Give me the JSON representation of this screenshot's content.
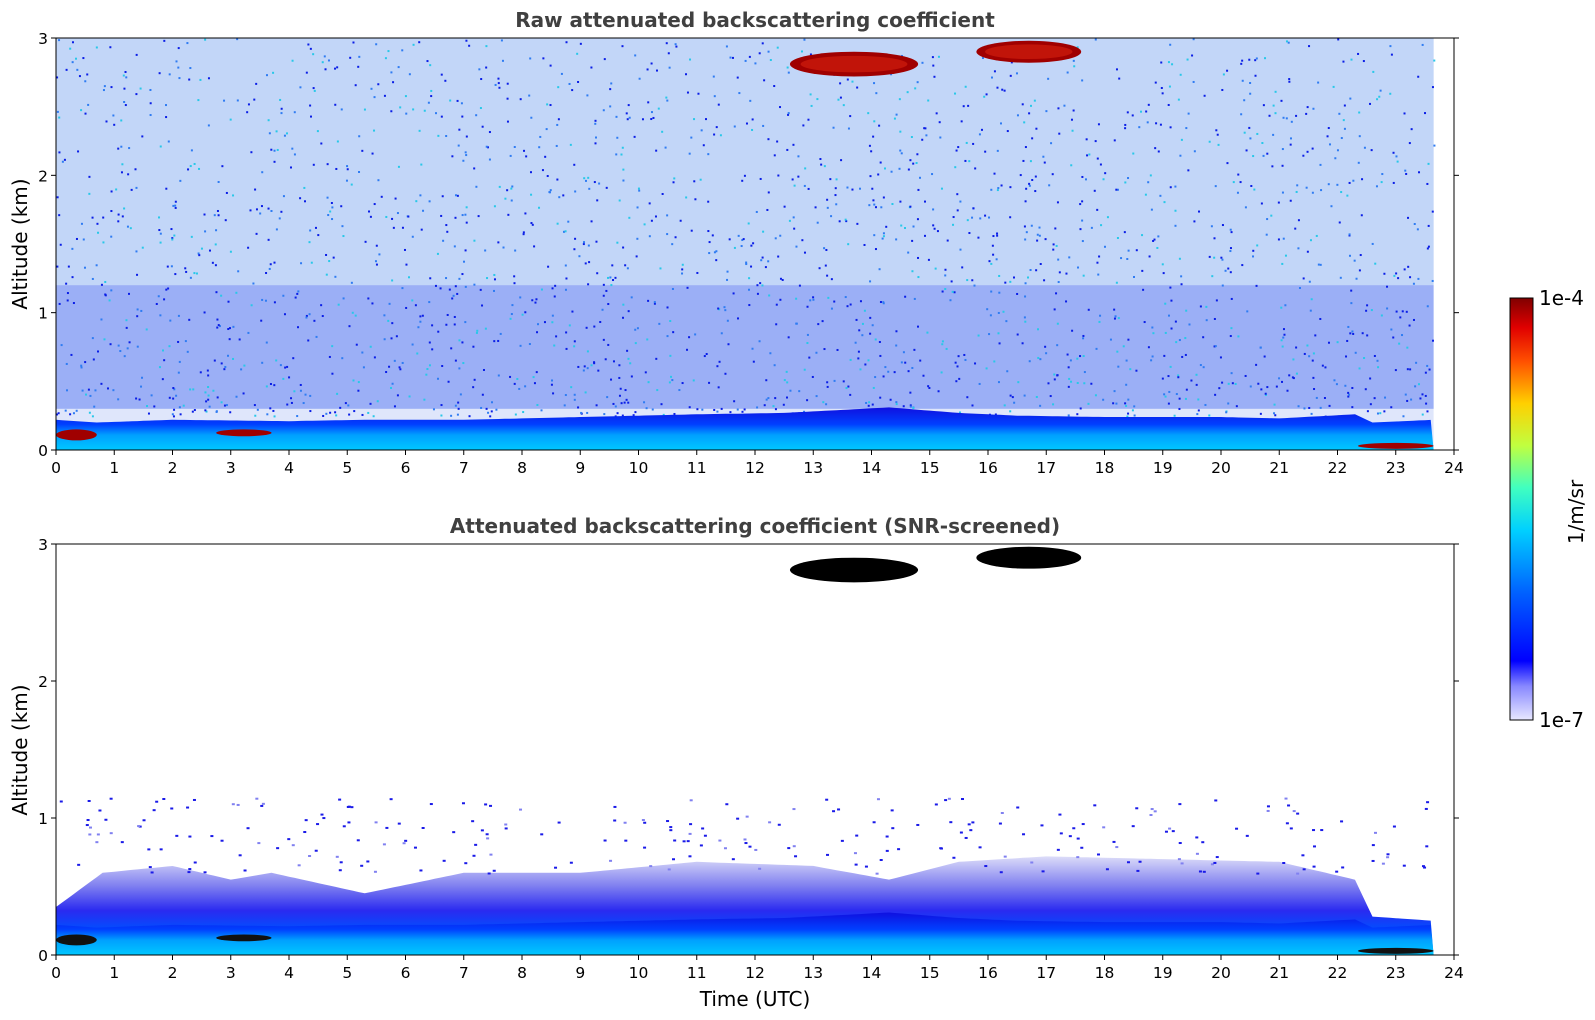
{
  "chart_data": [
    {
      "type": "heatmap",
      "title": "Raw attenuated backscattering coefficient",
      "xlabel": "",
      "ylabel": "Altitude (km)",
      "xlim": [
        0,
        24
      ],
      "ylim": [
        0,
        3
      ],
      "x_ticks": [
        "0",
        "1",
        "2",
        "3",
        "4",
        "5",
        "6",
        "7",
        "8",
        "9",
        "10",
        "11",
        "12",
        "13",
        "14",
        "15",
        "16",
        "17",
        "18",
        "19",
        "20",
        "21",
        "22",
        "23",
        "24"
      ],
      "y_ticks": [
        "0",
        "1",
        "2",
        "3"
      ],
      "data_end_time": 23.65,
      "boundary_layer_top_km": [
        [
          0,
          0.22
        ],
        [
          0.7,
          0.2
        ],
        [
          2,
          0.22
        ],
        [
          4,
          0.21
        ],
        [
          5.3,
          0.22
        ],
        [
          7,
          0.22
        ],
        [
          9,
          0.24
        ],
        [
          11,
          0.26
        ],
        [
          12.5,
          0.27
        ],
        [
          14.3,
          0.31
        ],
        [
          15.5,
          0.27
        ],
        [
          16.5,
          0.25
        ],
        [
          18,
          0.24
        ],
        [
          20,
          0.24
        ],
        [
          21,
          0.23
        ],
        [
          22.3,
          0.26
        ],
        [
          22.6,
          0.2
        ],
        [
          23.65,
          0.22
        ]
      ],
      "features": [
        {
          "kind": "cloud",
          "t_start": 12.6,
          "t_end": 14.8,
          "alt_km": [
            2.72,
            2.9
          ],
          "level": "1e-4"
        },
        {
          "kind": "cloud",
          "t_start": 15.8,
          "t_end": 17.6,
          "alt_km": [
            2.82,
            2.98
          ],
          "level": "1e-4"
        },
        {
          "kind": "surface-layer",
          "t_start": 0.0,
          "t_end": 0.7,
          "alt_km": [
            0.07,
            0.15
          ],
          "level": "1e-4"
        },
        {
          "kind": "surface-layer",
          "t_start": 2.75,
          "t_end": 3.7,
          "alt_km": [
            0.1,
            0.15
          ],
          "level": "1e-4"
        },
        {
          "kind": "surface-layer",
          "t_start": 22.35,
          "t_end": 23.65,
          "alt_km": [
            0.01,
            0.05
          ],
          "level": "1e-4"
        }
      ]
    },
    {
      "type": "heatmap",
      "title": "Attenuated backscattering coefficient (SNR-screened)",
      "xlabel": "Time (UTC)",
      "ylabel": "Altitude (km)",
      "xlim": [
        0,
        24
      ],
      "ylim": [
        0,
        3
      ],
      "x_ticks": [
        "0",
        "1",
        "2",
        "3",
        "4",
        "5",
        "6",
        "7",
        "8",
        "9",
        "10",
        "11",
        "12",
        "13",
        "14",
        "15",
        "16",
        "17",
        "18",
        "19",
        "20",
        "21",
        "22",
        "23",
        "24"
      ],
      "y_ticks": [
        "0",
        "1",
        "2",
        "3"
      ],
      "data_end_time": 23.65,
      "screened_layer_top_km": [
        [
          0,
          0.35
        ],
        [
          0.8,
          0.6
        ],
        [
          2,
          0.65
        ],
        [
          3,
          0.55
        ],
        [
          3.7,
          0.6
        ],
        [
          5.3,
          0.45
        ],
        [
          7,
          0.6
        ],
        [
          9,
          0.6
        ],
        [
          11,
          0.68
        ],
        [
          13,
          0.65
        ],
        [
          14.3,
          0.55
        ],
        [
          15.5,
          0.68
        ],
        [
          17,
          0.72
        ],
        [
          19,
          0.7
        ],
        [
          21,
          0.68
        ],
        [
          22.3,
          0.55
        ],
        [
          22.6,
          0.28
        ],
        [
          23.65,
          0.25
        ]
      ],
      "features": [
        {
          "kind": "cloud",
          "t_start": 12.6,
          "t_end": 14.8,
          "alt_km": [
            2.7,
            2.9
          ],
          "level": "saturated"
        },
        {
          "kind": "cloud",
          "t_start": 15.8,
          "t_end": 17.6,
          "alt_km": [
            2.82,
            2.98
          ],
          "level": "saturated"
        }
      ]
    }
  ],
  "colorbar": {
    "label": "1/m/sr",
    "max_label": "1e-4",
    "min_label": "1e-7",
    "scale": "log",
    "colormap": "jet"
  }
}
